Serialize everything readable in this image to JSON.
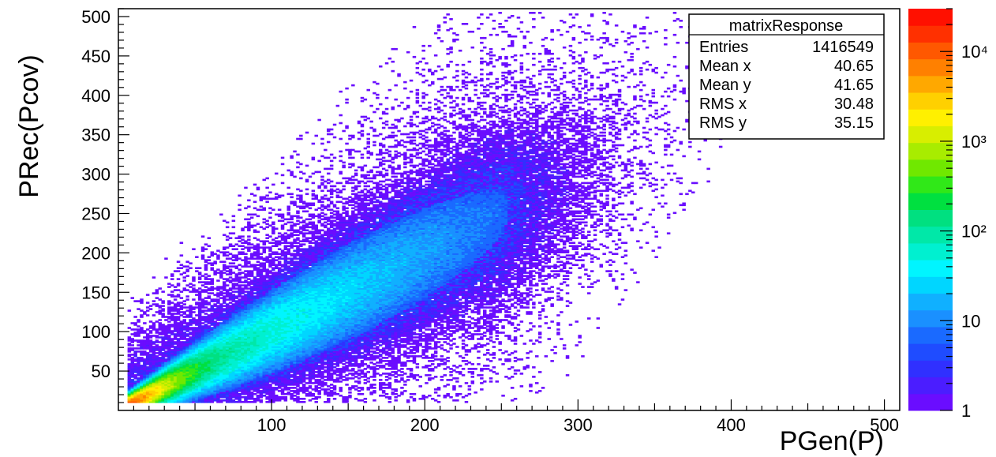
{
  "chart_data": {
    "type": "heatmap",
    "title": "",
    "xlabel": "PGen(P)",
    "ylabel": "PRec(Pcov)",
    "xlim": [
      0,
      510
    ],
    "ylim": [
      0,
      510
    ],
    "x_ticks": [
      100,
      200,
      300,
      400,
      500
    ],
    "y_ticks": [
      50,
      100,
      150,
      200,
      250,
      300,
      350,
      400,
      450,
      500
    ],
    "z_scale": "log",
    "z_range": [
      1,
      30000
    ],
    "z_tick_labels": [
      "1",
      "10",
      "10²",
      "10³",
      "10⁴"
    ],
    "z_tick_values": [
      1,
      10,
      100,
      1000,
      10000
    ],
    "palette": [
      "#6a0dff",
      "#4b1dff",
      "#3030ff",
      "#1f4cff",
      "#1a6aff",
      "#1a90ff",
      "#10b0ff",
      "#00d6ff",
      "#00f5ff",
      "#00f0d0",
      "#00e8a8",
      "#00e080",
      "#00e040",
      "#30e818",
      "#70e800",
      "#a8ec00",
      "#d8ee00",
      "#fff000",
      "#ffd000",
      "#ffa800",
      "#ff8000",
      "#ff5800",
      "#ff3000",
      "#ff1000"
    ],
    "distribution": {
      "description_hidden": true,
      "core_slope": 1.0,
      "peak_bins": [
        [
          15,
          15
        ],
        [
          30,
          30
        ],
        [
          60,
          62
        ],
        [
          100,
          102
        ],
        [
          150,
          150
        ],
        [
          180,
          180
        ]
      ]
    },
    "stats_box": {
      "title": "matrixResponse",
      "rows": [
        {
          "label": "Entries",
          "value": "1416549"
        },
        {
          "label": "Mean x",
          "value": "40.65"
        },
        {
          "label": "Mean y",
          "value": "41.65"
        },
        {
          "label": "RMS x",
          "value": "30.48"
        },
        {
          "label": "RMS y",
          "value": "35.15"
        }
      ]
    },
    "grid": false
  }
}
